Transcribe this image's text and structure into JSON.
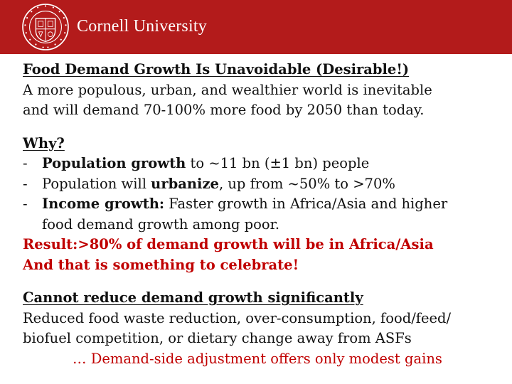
{
  "header": {
    "brand_name": "Cornell University",
    "seal_text": "CORNELL UNIVERSITY FOUNDED A.D. 1865",
    "background_color": "#b31b1b",
    "text_color": "#ffffff"
  },
  "section1": {
    "heading": "Food Demand Growth Is Unavoidable (Desirable!)",
    "body_line1": "A more populous, urban, and wealthier world is inevitable",
    "body_line2": "and will demand 70-100% more food by 2050 than today."
  },
  "section2": {
    "heading": "Why?",
    "bullets": [
      {
        "dash": "-",
        "bold": "Population growth",
        "text": " to ~11 bn (±1 bn) people"
      },
      {
        "dash": "-",
        "pre": "Population will ",
        "bold": "urbanize",
        "text": ", up from ~50% to >70%"
      },
      {
        "dash": "-",
        "bold": "Income growth:",
        "text": " Faster growth in Africa/Asia and higher",
        "continuation": "food demand growth among poor."
      }
    ],
    "result_line1": "Result:>80% of demand growth will be in Africa/Asia",
    "result_line2": "And that is something to celebrate!",
    "accent_color": "#c00000"
  },
  "section3": {
    "heading": "Cannot reduce demand growth significantly",
    "body_line1": "Reduced food waste reduction, over-consumption, food/feed/",
    "body_line2": "biofuel competition, or dietary change away from ASFs",
    "conclusion": "… Demand-side adjustment offers only modest gains"
  }
}
